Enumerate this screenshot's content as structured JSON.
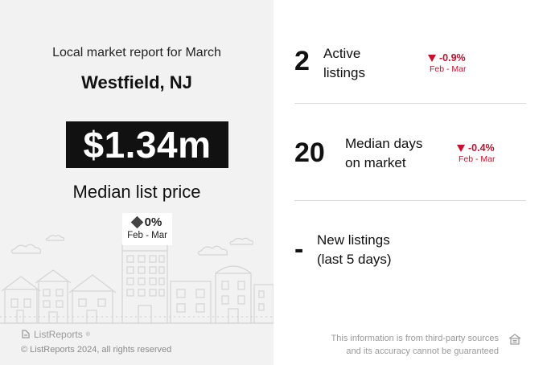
{
  "report": {
    "title": "Local market report for March",
    "city": "Westfield, NJ"
  },
  "median_price": {
    "value": "$1.34m",
    "label": "Median list price",
    "change_icon": "diamond-neutral-icon",
    "change_pct": "0%",
    "change_period": "Feb - Mar"
  },
  "stats": [
    {
      "number": "2",
      "label_line1": "Active",
      "label_line2": "listings",
      "change_icon": "triangle-down-icon",
      "change_pct": "-0.9%",
      "change_period": "Feb - Mar"
    },
    {
      "number": "20",
      "label_line1": "Median days",
      "label_line2": "on market",
      "change_icon": "triangle-down-icon",
      "change_pct": "-0.4%",
      "change_period": "Feb - Mar"
    },
    {
      "number": "-",
      "label_line1": "New listings",
      "label_line2": "(last 5 days)"
    }
  ],
  "footer": {
    "brand": "ListReports",
    "brand_mark": "®",
    "copyright": "© ListReports 2024, all rights reserved",
    "disclaimer_line1": "This information is from third-party sources",
    "disclaimer_line2": "and its accuracy cannot be guaranteed",
    "equal_housing_icon": "equal-housing-icon"
  },
  "colors": {
    "left_bg": "#f2f2f2",
    "price_bg": "#111111",
    "negative": "#c8102e",
    "muted": "#9a9a9a",
    "skyline_stroke": "#d4d4d4"
  }
}
